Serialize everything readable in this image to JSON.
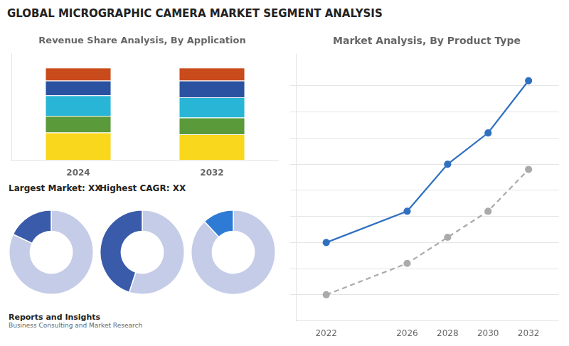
{
  "title": "GLOBAL MICROGRAPHIC CAMERA MARKET SEGMENT ANALYSIS",
  "annotations": [
    "Reports and Insights",
    "Business Consulting and Market Research"
  ],
  "chart_data": [
    {
      "type": "bar",
      "title": "Revenue Share Analysis, By Application",
      "categories": [
        "2024",
        "2032"
      ],
      "stacked": true,
      "ylim": [
        0,
        1.15
      ],
      "tick_labels": "x",
      "grid": false,
      "series": [
        {
          "color": "#f9d71c",
          "values": [
            0.3,
            0.28
          ]
        },
        {
          "color": "#5a9a3a",
          "values": [
            0.18,
            0.18
          ]
        },
        {
          "color": "#29b6d6",
          "values": [
            0.22,
            0.22
          ]
        },
        {
          "color": "#2a52a0",
          "values": [
            0.16,
            0.18
          ]
        },
        {
          "color": "#c94a1a",
          "values": [
            0.14,
            0.14
          ]
        }
      ]
    },
    {
      "type": "line",
      "title": "Market Analysis, By Product Type",
      "x": [
        2022,
        2026,
        2028,
        2030,
        2032
      ],
      "xlim": [
        2020.5,
        2033.5
      ],
      "xticks": [
        2022,
        2026,
        2028,
        2030,
        2032
      ],
      "ylim": [
        0.0,
        1.02
      ],
      "yticks": [
        0.1,
        0.2,
        0.3,
        0.4,
        0.5,
        0.6,
        0.7,
        0.8,
        0.9
      ],
      "tick_labels": "x",
      "grid": true,
      "series": [
        {
          "color": "#3070c0",
          "line_style": "solid",
          "marker": "circle",
          "values": [
            0.3,
            0.42,
            0.6,
            0.72,
            0.92
          ]
        },
        {
          "color": "#aaaaaa",
          "line_style": "dashed",
          "marker": "circle",
          "values": [
            0.1,
            0.22,
            0.32,
            0.42,
            0.58
          ]
        }
      ]
    },
    {
      "type": "doughnut",
      "annotations": [
        "Largest Market: XX"
      ],
      "values": [
        0.82,
        0.18
      ],
      "colors": [
        "#c5cce8",
        "#3a5aaa"
      ]
    },
    {
      "type": "doughnut",
      "annotations": [
        "Highest CAGR: XX"
      ],
      "values": [
        0.55,
        0.45
      ],
      "colors": [
        "#c5cce8",
        "#3a5aaa"
      ]
    },
    {
      "type": "doughnut",
      "values": [
        0.88,
        0.12
      ],
      "colors": [
        "#c5cce8",
        "#2e7bd6"
      ]
    }
  ]
}
